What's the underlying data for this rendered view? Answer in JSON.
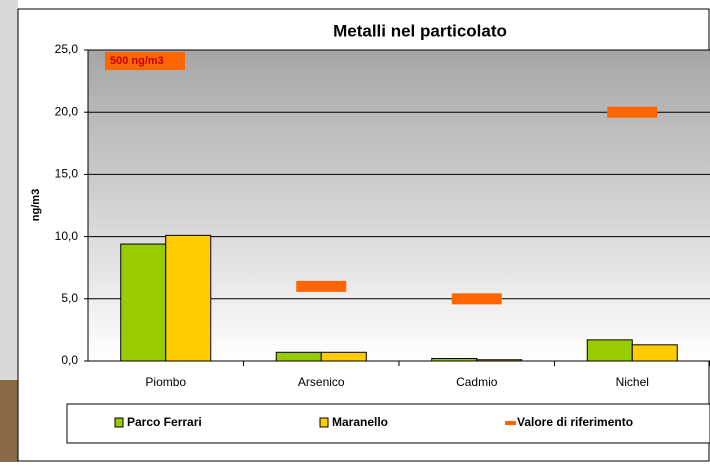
{
  "chart_data": {
    "type": "bar",
    "title": "Metalli nel particolato",
    "y_label": "ng/m3",
    "categories": [
      "Piombo",
      "Arsenico",
      "Cadmio",
      "Nichel"
    ],
    "series": [
      {
        "name": "Parco Ferrari",
        "color": "#99cc00",
        "values": [
          9.4,
          0.7,
          0.2,
          1.7
        ]
      },
      {
        "name": "Maranello",
        "color": "#ffcc00",
        "values": [
          10.1,
          0.7,
          0.1,
          1.3
        ]
      },
      {
        "name": "Valore di riferimento",
        "color": "#ff6600",
        "values": [
          null,
          6,
          5,
          20
        ],
        "style": "dash"
      }
    ],
    "annotation": "500 ng/m3",
    "ylim": [
      0,
      25
    ],
    "yticks": [
      {
        "value": 0,
        "label": "0,0"
      },
      {
        "value": 5,
        "label": "5,0"
      },
      {
        "value": 10,
        "label": "10,0"
      },
      {
        "value": 15,
        "label": "15,0"
      },
      {
        "value": 20,
        "label": "20,0"
      },
      {
        "value": 25,
        "label": "25,0"
      }
    ],
    "grid": true
  }
}
